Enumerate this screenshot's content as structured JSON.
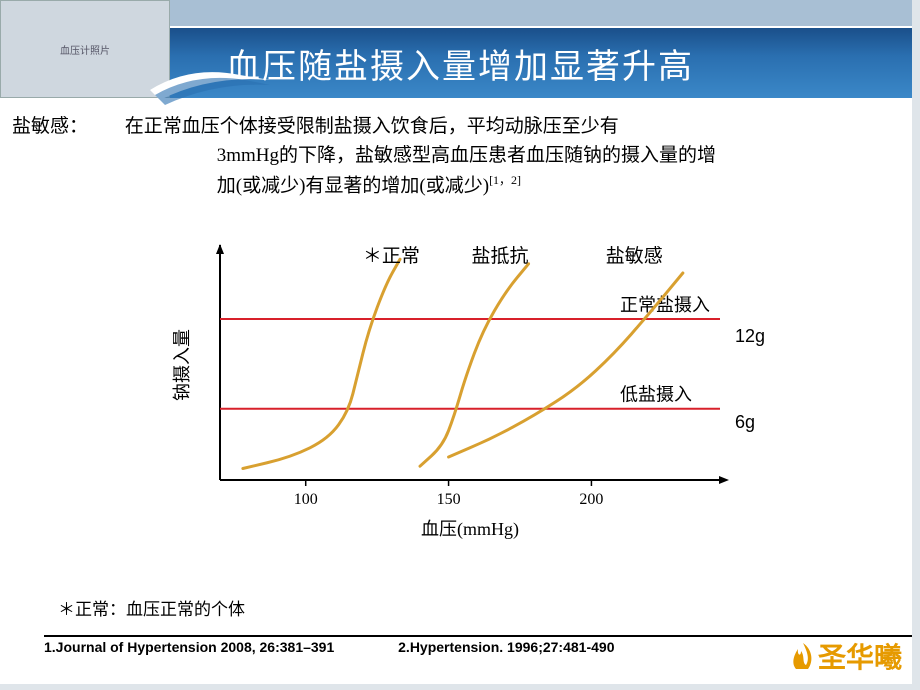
{
  "slide": {
    "title": "血压随盐摄入量增加显著升高",
    "colors": {
      "topbar": "#a8bfd4",
      "title_grad_top": "#1a4f8a",
      "title_grad_mid": "#2a6fb0",
      "title_grad_bot": "#3b88c8",
      "title_text": "#ffffff",
      "logo_color": "#e69a00",
      "body_text": "#000000",
      "background": "#ffffff"
    },
    "header_img_alt": "血压计照片"
  },
  "definition": {
    "label": "盐敏感：",
    "line1": "在正常血压个体接受限制盐摄入饮食后，平均动脉压至少有",
    "line2": "3mmHg的下降，盐敏感型高血压患者血压随钠的摄入量的增",
    "line3": "加(或减少)有显著的增加(或减少)",
    "citation_sup": "[1，2]"
  },
  "chart": {
    "type": "line",
    "x_axis_label": "血压(mmHg)",
    "y_axis_label": "钠摄入量",
    "x_ticks": [
      100,
      150,
      200
    ],
    "xlim": [
      70,
      245
    ],
    "ylim": [
      0,
      100
    ],
    "reference_lines": [
      {
        "value": 70,
        "label": "正常盐摄入",
        "right_label": "12g",
        "color": "#d8202a",
        "width": 2
      },
      {
        "value": 31,
        "label": "低盐摄入",
        "right_label": "6g",
        "color": "#d8202a",
        "width": 2
      }
    ],
    "curves": [
      {
        "name": "normal",
        "label": "＊正常",
        "color": "#d8a030",
        "width": 3,
        "label_x": 130,
        "points": [
          {
            "x": 78,
            "y": 5
          },
          {
            "x": 95,
            "y": 10
          },
          {
            "x": 108,
            "y": 18
          },
          {
            "x": 115,
            "y": 30
          },
          {
            "x": 118,
            "y": 45
          },
          {
            "x": 122,
            "y": 65
          },
          {
            "x": 128,
            "y": 85
          },
          {
            "x": 133,
            "y": 96
          }
        ]
      },
      {
        "name": "resistant",
        "label": "盐抵抗",
        "color": "#d8a030",
        "width": 3,
        "label_x": 168,
        "points": [
          {
            "x": 140,
            "y": 6
          },
          {
            "x": 148,
            "y": 15
          },
          {
            "x": 152,
            "y": 28
          },
          {
            "x": 156,
            "y": 45
          },
          {
            "x": 162,
            "y": 65
          },
          {
            "x": 170,
            "y": 82
          },
          {
            "x": 178,
            "y": 94
          }
        ]
      },
      {
        "name": "sensitive",
        "label": "盐敏感",
        "color": "#d8a030",
        "width": 3,
        "label_x": 215,
        "points": [
          {
            "x": 150,
            "y": 10
          },
          {
            "x": 165,
            "y": 18
          },
          {
            "x": 180,
            "y": 28
          },
          {
            "x": 195,
            "y": 40
          },
          {
            "x": 208,
            "y": 55
          },
          {
            "x": 220,
            "y": 72
          },
          {
            "x": 232,
            "y": 90
          }
        ]
      }
    ],
    "axis_color": "#000000",
    "tick_fontsize": 16,
    "label_fontsize": 18,
    "curve_label_fontsize": 19,
    "grid": false
  },
  "footnote": "＊正常：血压正常的个体",
  "references": {
    "ref1": "1.Journal of Hypertension 2008, 26:381–391",
    "ref2": "2.Hypertension. 1996;27:481-490"
  },
  "logo": {
    "text": "圣华曦",
    "flame_color": "#e69a00"
  }
}
